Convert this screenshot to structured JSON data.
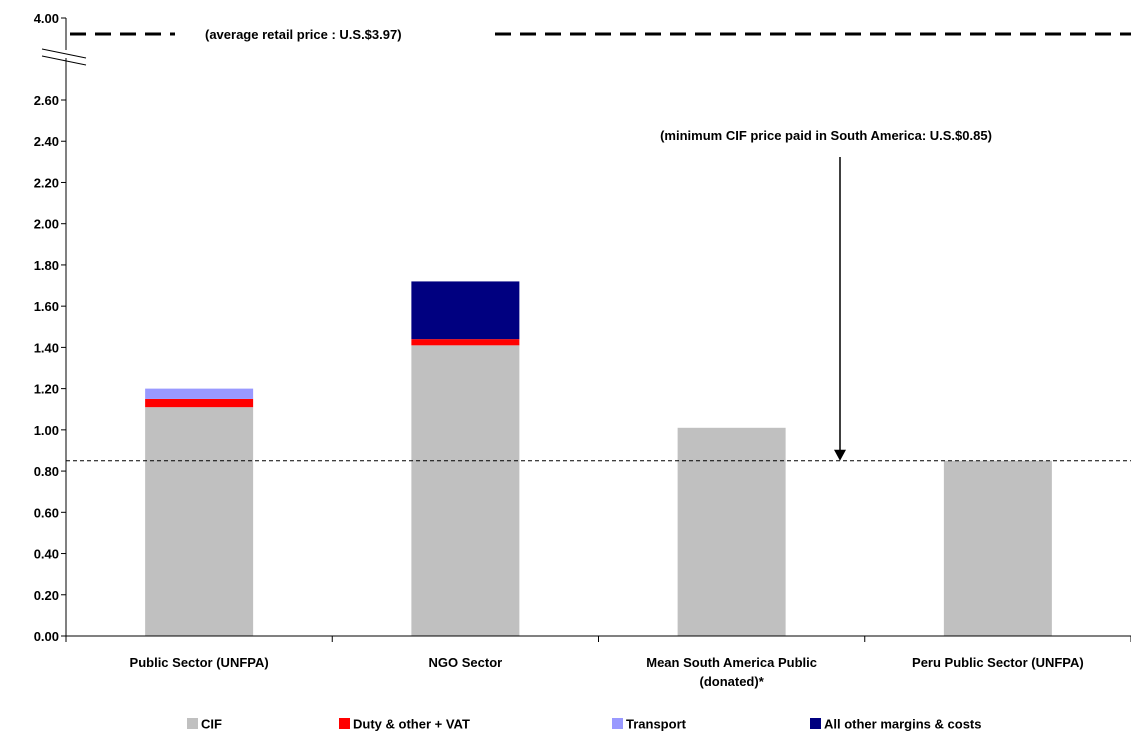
{
  "chart_data": {
    "type": "bar",
    "stacked": true,
    "categories": [
      [
        "Public Sector (UNFPA)"
      ],
      [
        "NGO Sector"
      ],
      [
        "Mean South America Public",
        "(donated)*"
      ],
      [
        "Peru Public Sector (UNFPA)"
      ]
    ],
    "series": [
      {
        "name": "CIF",
        "color": "#c0c0c0",
        "values": [
          1.11,
          1.41,
          1.01,
          0.85
        ]
      },
      {
        "name": "Duty & other + VAT",
        "color": "#ff0000",
        "values": [
          0.04,
          0.03,
          0,
          0
        ]
      },
      {
        "name": "Transport",
        "color": "#9999ff",
        "values": [
          0.05,
          0,
          0,
          0
        ]
      },
      {
        "name": "All other margins & costs",
        "color": "#000080",
        "values": [
          0,
          0.28,
          0,
          0
        ]
      }
    ],
    "y_ticks": [
      "0.00",
      "0.20",
      "0.40",
      "0.60",
      "0.80",
      "1.00",
      "1.20",
      "1.40",
      "1.60",
      "1.80",
      "2.00",
      "2.20",
      "2.40",
      "2.60"
    ],
    "y_top_label": "4.00",
    "ylim": [
      0,
      2.6
    ],
    "axis_break": true,
    "grid": false,
    "legend_position": "bottom",
    "reference_lines": [
      {
        "value": 3.97,
        "label": "(average retail price : U.S.$3.97)",
        "style": "long-dash"
      },
      {
        "value": 0.85,
        "label": "(minimum CIF price paid in South America: U.S.$0.85)",
        "style": "short-dash"
      }
    ]
  }
}
